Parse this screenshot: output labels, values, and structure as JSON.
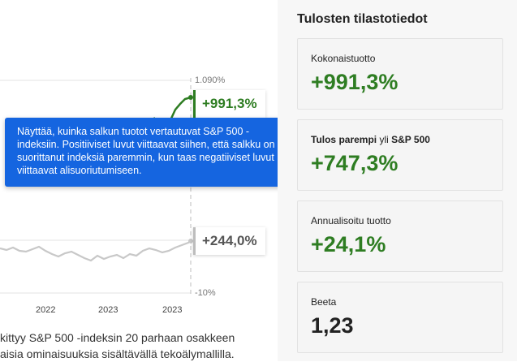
{
  "chart": {
    "y_max_label": "1.090%",
    "y_min_label": "-10%",
    "x_ticks": [
      "2022",
      "2023",
      "2023"
    ],
    "portfolio_value": "+991,3%",
    "index_value": "+244,0%",
    "colors": {
      "portfolio": "#2e7d22",
      "index": "#c8c8c8"
    }
  },
  "chart_data": {
    "type": "line",
    "ylim_labels": [
      "-10%",
      "1.090%"
    ],
    "x_tick_labels": [
      "2022",
      "2023",
      "2023"
    ],
    "series": [
      {
        "end_value": "+991,3%",
        "color": "#2e7d22"
      },
      {
        "end_value": "+244,0%",
        "color": "#c8c8c8"
      }
    ]
  },
  "description": {
    "line1": "kittyy S&P 500 -indeksin 20 parhaan osakkeen",
    "line2": "aisia ominaisuuksia sisältävällä tekoälymallilla."
  },
  "tooltip": {
    "text": "Näyttää, kuinka salkun tuotot vertautuvat S&P 500 -indeksiin. Positiiviset luvut viittaavat siihen, että salkku on suorittanut indeksiä paremmin, kun taas negatiiviset luvut viittaavat alisuoriutumiseen."
  },
  "stats": {
    "title": "Tulosten tilastotiedot",
    "cards": [
      {
        "label": "Kokonaistuotto",
        "value": "+991,3%"
      },
      {
        "label_part1": "Tulos parempi",
        "label_part2": " yli ",
        "label_part3": "S&P 500",
        "value": "+747,3%"
      },
      {
        "label": "Annualisoitu tuotto",
        "value": "+24,1%"
      },
      {
        "label": "Beeta",
        "value": "1,23"
      }
    ]
  }
}
